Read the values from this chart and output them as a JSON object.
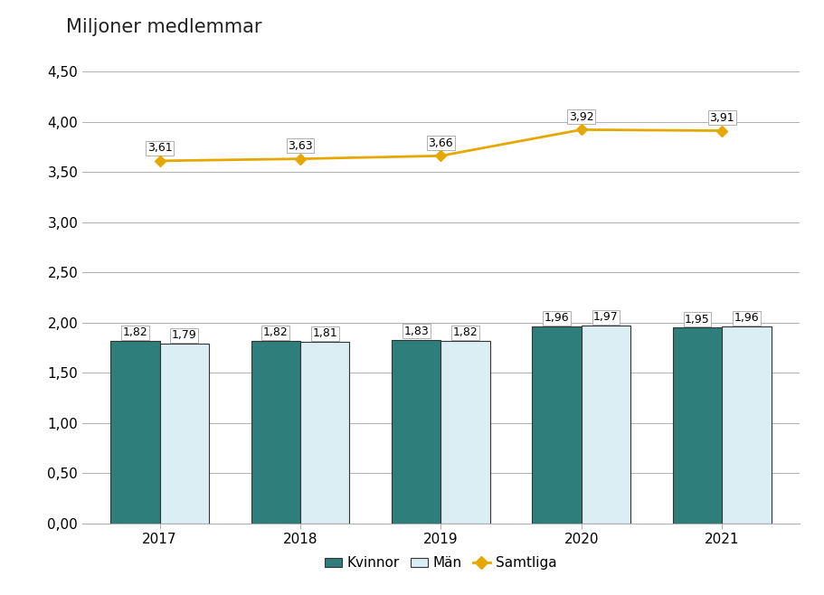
{
  "years": [
    2017,
    2018,
    2019,
    2020,
    2021
  ],
  "kvinnor": [
    1.82,
    1.82,
    1.83,
    1.96,
    1.95
  ],
  "man": [
    1.79,
    1.81,
    1.82,
    1.97,
    1.96
  ],
  "samtliga": [
    3.61,
    3.63,
    3.66,
    3.92,
    3.91
  ],
  "kvinnor_color": "#2e7f7c",
  "man_color": "#daeef3",
  "samtliga_color": "#e6a800",
  "title": "Miljoner medlemmar",
  "ylim": [
    0,
    4.5
  ],
  "yticks": [
    0.0,
    0.5,
    1.0,
    1.5,
    2.0,
    2.5,
    3.0,
    3.5,
    4.0,
    4.5
  ],
  "ytick_labels": [
    "0,00",
    "0,50",
    "1,00",
    "1,50",
    "2,00",
    "2,50",
    "3,00",
    "3,50",
    "4,00",
    "4,50"
  ],
  "bar_width": 0.35,
  "legend_kvinnor": "Kvinnor",
  "legend_man": "Män",
  "legend_samtliga": "Samtliga",
  "background_color": "#ffffff",
  "grid_color": "#b0b0b0",
  "bar_edge_color": "#333333",
  "label_fontsize": 9,
  "title_fontsize": 15,
  "tick_fontsize": 11,
  "legend_fontsize": 11
}
